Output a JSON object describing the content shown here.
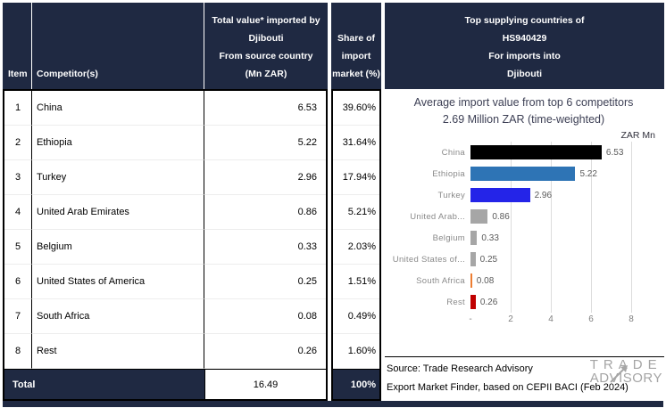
{
  "colors": {
    "header_navy": "#1f2942",
    "bar_gray": "#a6a6a6",
    "bar_orange": "#ed7d31",
    "bar_red": "#c00000",
    "bar_blue": "#2424e8",
    "bar_steelblue": "#2e74b5"
  },
  "table": {
    "headers": {
      "item": "Item",
      "competitors": "Competitor(s)",
      "total_value_lines": [
        "Total value* imported by",
        "Djibouti",
        "From source country",
        "(Mn ZAR)"
      ],
      "share_lines": [
        "Share of",
        "import",
        "market (%)"
      ]
    },
    "rows": [
      {
        "item": "1",
        "competitor": "China",
        "value": "6.53",
        "share": "39.60%"
      },
      {
        "item": "2",
        "competitor": "Ethiopia",
        "value": "5.22",
        "share": "31.64%"
      },
      {
        "item": "3",
        "competitor": "Turkey",
        "value": "2.96",
        "share": "17.94%"
      },
      {
        "item": "4",
        "competitor": "United Arab Emirates",
        "value": "0.86",
        "share": "5.21%"
      },
      {
        "item": "5",
        "competitor": "Belgium",
        "value": "0.33",
        "share": "2.03%"
      },
      {
        "item": "6",
        "competitor": "United States of America",
        "value": "0.25",
        "share": "1.51%"
      },
      {
        "item": "7",
        "competitor": "South Africa",
        "value": "0.08",
        "share": "0.49%"
      },
      {
        "item": "8",
        "competitor": "Rest",
        "value": "0.26",
        "share": "1.60%"
      }
    ],
    "total": {
      "label": "Total",
      "value": "16.49",
      "share": "100%"
    }
  },
  "right_panel": {
    "header_lines": [
      "Top supplying countries of",
      "HS940429",
      "For imports into",
      "Djibouti"
    ],
    "source_line1": "Source: Trade Research Advisory",
    "source_line2": "Export Market Finder, based on CEPII BACI (Feb 2024)",
    "logo": {
      "line1": "TRADE",
      "line2": "ADVISORY"
    }
  },
  "chart_data": {
    "type": "bar",
    "orientation": "horizontal",
    "title": "Average import value from top 6 competitors",
    "subtitle": "2.69 Million ZAR (time-weighted)",
    "unit_label": "ZAR Mn",
    "categories": [
      "China",
      "Ethiopia",
      "Turkey",
      "United Arab...",
      "Belgium",
      "United States of...",
      "South Africa",
      "Rest"
    ],
    "values": [
      6.53,
      5.22,
      2.96,
      0.86,
      0.33,
      0.25,
      0.08,
      0.26
    ],
    "value_labels": [
      "6.53",
      "5.22",
      "2.96",
      "0.86",
      "0.33",
      "0.25",
      "0.08",
      "0.26"
    ],
    "bar_colors": [
      "#000000",
      "#2e74b5",
      "#2424e8",
      "#a6a6a6",
      "#a6a6a6",
      "#a6a6a6",
      "#ed7d31",
      "#c00000"
    ],
    "xlim": [
      0,
      8
    ],
    "x_ticks": [
      "-",
      "2",
      "4",
      "6",
      "8"
    ],
    "grid": true,
    "legend": false
  }
}
